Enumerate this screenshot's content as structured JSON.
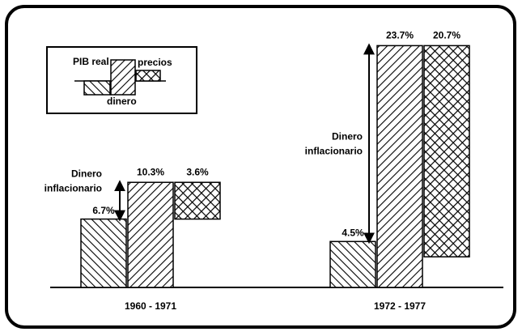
{
  "chart_data": {
    "type": "waterfall",
    "categories": [
      "1960 - 1971",
      "1972 - 1977"
    ],
    "series": [
      {
        "name": "PIB real",
        "pattern": "back-hatch",
        "values": [
          6.7,
          4.5
        ],
        "value_labels": [
          "6.7%",
          "4.5%"
        ]
      },
      {
        "name": "dinero",
        "pattern": "forward-hatch",
        "values": [
          10.3,
          23.7
        ],
        "value_labels": [
          "10.3%",
          "23.7%"
        ]
      },
      {
        "name": "precios",
        "pattern": "cross-hatch",
        "values": [
          3.6,
          20.7
        ],
        "value_labels": [
          "3.6%",
          "20.7%"
        ]
      }
    ],
    "annotations": [
      [
        "Dinero",
        "inflacionario"
      ],
      [
        "Dinero",
        "inflacionario"
      ]
    ],
    "ylim": [
      0,
      25
    ]
  }
}
